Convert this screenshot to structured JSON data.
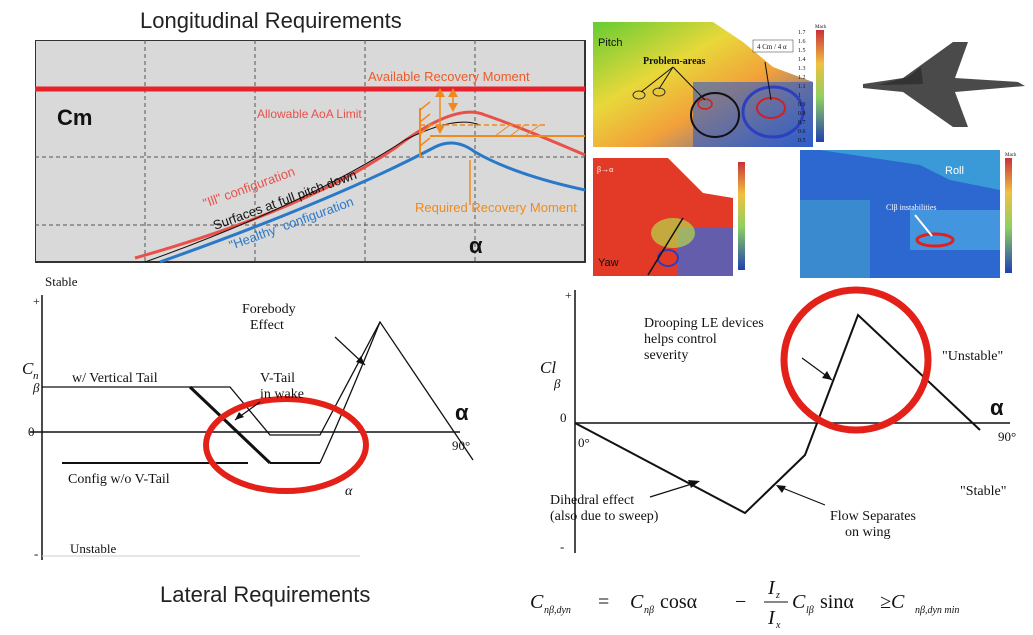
{
  "longitudinal": {
    "title": "Longitudinal Requirements",
    "cm_label": "Cm",
    "alpha_label": "α",
    "available_recovery": "Available Recovery Moment",
    "allowable_aoa": "Allowable AoA  Limit",
    "ill_config": "\"Ill\" configuration",
    "surfaces_label": "Surfaces at full pitch down",
    "healthy_config": "\"Healthy\" configuration",
    "required_recovery": "Required Recovery Moment",
    "colors": {
      "available": "#e8212a",
      "ill": "#e8514a",
      "healthy": "#2a78c8",
      "orange": "#ef8a1e",
      "panel": "#d9d9d9"
    }
  },
  "maps": {
    "pitch": {
      "label": "Pitch",
      "legend_header": "4 Cm / 4 α",
      "problem_areas": "Problem-areas",
      "scale_title": "Mach",
      "scale": [
        "1.7",
        "1.6",
        "1.5",
        "1.4",
        "1.3",
        "1.2",
        "1.1",
        "1",
        "0.9",
        "0.8",
        "0.7",
        "0.6",
        "0.5"
      ]
    },
    "yaw": {
      "label": "Yaw",
      "corner": "β→α"
    },
    "roll": {
      "label": "Roll",
      "instabilities": "Clβ instabilities",
      "scale_title": "Mach"
    }
  },
  "lateral_left": {
    "stable": "Stable",
    "unstable": "Unstable",
    "plus": "+",
    "minus": "-",
    "zero": "0",
    "cn_beta_main": "C",
    "cn_beta_sub1": "n",
    "cn_beta_sub2": "β",
    "w_vertical_tail": "w/ Vertical Tail",
    "vtail_wake_1": "V-Tail",
    "vtail_wake_2": "in wake",
    "forebody_1": "Forebody",
    "forebody_2": "Effect",
    "config_wo": "Config w/o V-Tail",
    "alpha_big": "α",
    "alpha_small": "α",
    "deg90": "90°"
  },
  "lateral_right": {
    "plus": "+",
    "minus": "-",
    "zero": "0",
    "deg0": "0°",
    "deg90": "90°",
    "cl_main": "Cl",
    "cl_sub": "β",
    "alpha": "α",
    "drooping_1": "Drooping LE devices",
    "drooping_2": "helps control",
    "drooping_3": "severity",
    "unstable": "\"Unstable\"",
    "stable": "\"Stable\"",
    "dihedral_1": "Dihedral effect",
    "dihedral_2": "(also due to sweep)",
    "flow_1": "Flow Separates",
    "flow_2": "on wing",
    "circle_color": "#e32119"
  },
  "bottom": {
    "title": "Lateral Requirements",
    "eq_lhs": "C",
    "eq_lhs_sub": "nβ,dyn",
    "eq_t1": "C",
    "eq_t1_sub": "nβ",
    "eq_cos": "cosα",
    "eq_minus": "−",
    "eq_iz": "I",
    "eq_iz_sub": "z",
    "eq_ix": "I",
    "eq_ix_sub": "x",
    "eq_t2": "C",
    "eq_t2_sub": "lβ",
    "eq_sin": "sinα",
    "eq_ge": "≥C",
    "eq_rhs_sub": "nβ,dyn min",
    "eq_equals": "="
  }
}
